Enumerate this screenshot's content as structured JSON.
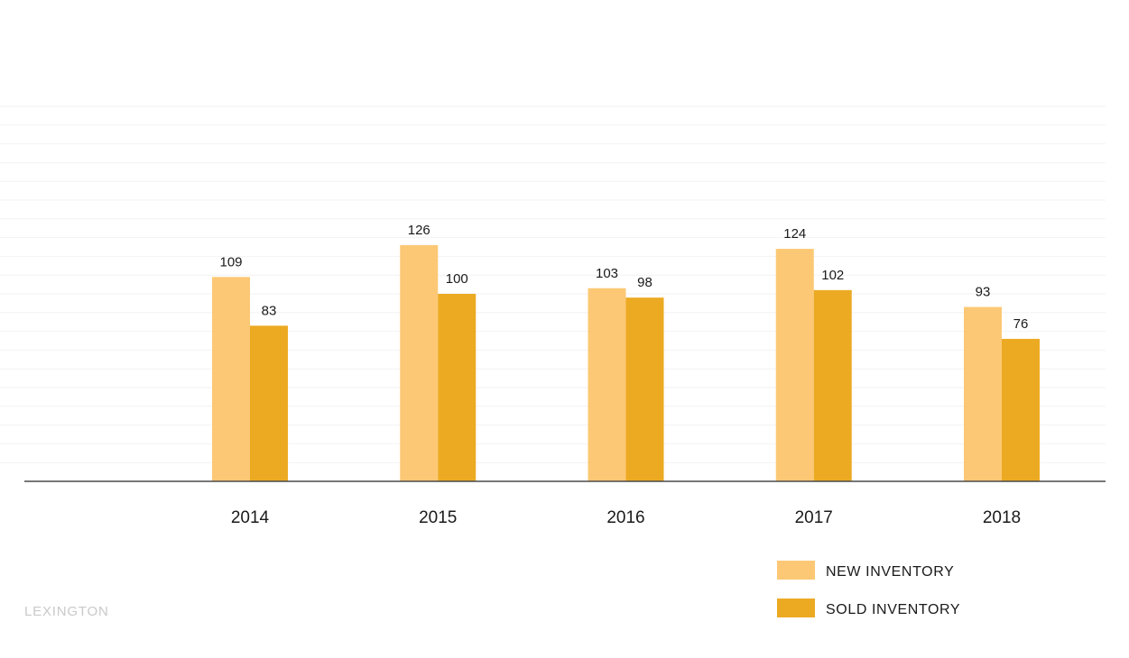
{
  "chart_data": {
    "type": "bar",
    "categories": [
      "2014",
      "2015",
      "2016",
      "2017",
      "2018"
    ],
    "series": [
      {
        "name": "NEW INVENTORY",
        "color": "#FCC875",
        "values": [
          109,
          126,
          103,
          124,
          93
        ]
      },
      {
        "name": "SOLD INVENTORY",
        "color": "#ECAA23",
        "values": [
          83,
          100,
          98,
          102,
          76
        ]
      }
    ],
    "ylim": [
      0,
      200
    ],
    "grid": true,
    "legend_position": "bottom-right"
  },
  "footer": {
    "watermark": "LEXINGTON"
  }
}
